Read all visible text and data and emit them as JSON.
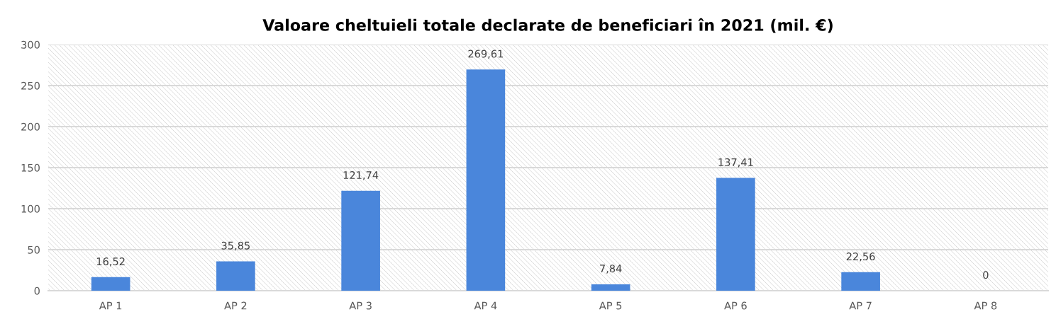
{
  "chart_data": {
    "type": "bar",
    "title": "Valoare cheltuieli totale declarate de beneficiari în 2021 (mil. €)",
    "categories": [
      "AP 1",
      "AP 2",
      "AP 3",
      "AP 4",
      "AP 5",
      "AP 6",
      "AP 7",
      "AP 8"
    ],
    "values": [
      16.52,
      35.85,
      121.74,
      269.61,
      7.84,
      137.41,
      22.56,
      0
    ],
    "value_labels": [
      "16,52",
      "35,85",
      "121,74",
      "269,61",
      "7,84",
      "137,41",
      "22,56",
      "0"
    ],
    "color": "#4a86db",
    "ylim": [
      0,
      300
    ],
    "yticks": [
      0,
      50,
      100,
      150,
      200,
      250,
      300
    ],
    "grid": "y",
    "legend": false
  }
}
